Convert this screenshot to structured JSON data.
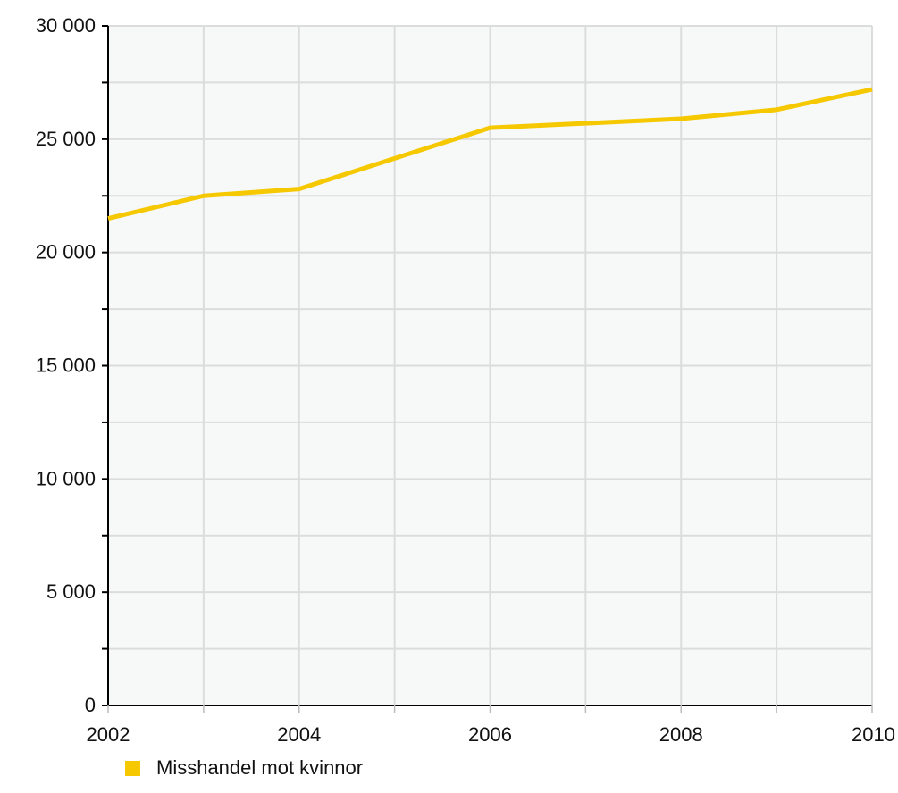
{
  "chart_data": {
    "type": "line",
    "x": [
      2002,
      2003,
      2004,
      2005,
      2006,
      2007,
      2008,
      2009,
      2010
    ],
    "series": [
      {
        "name": "Misshandel mot kvinnor",
        "values": [
          21500,
          22500,
          22800,
          24150,
          25500,
          25700,
          25900,
          26300,
          27200
        ],
        "color": "#f5c800"
      }
    ],
    "x_tick_labels": [
      "2002",
      "2004",
      "2006",
      "2008",
      "2010"
    ],
    "y_tick_labels": [
      "0",
      "5 000",
      "10 000",
      "15 000",
      "20 000",
      "25 000",
      "30 000"
    ],
    "y_ticks": [
      0,
      5000,
      10000,
      15000,
      20000,
      25000,
      30000
    ],
    "xlim": [
      2002,
      2010
    ],
    "ylim": [
      0,
      30000
    ],
    "grid": true,
    "legend_position": "bottom-left",
    "title": "",
    "xlabel": "",
    "ylabel": "",
    "colors": {
      "plot_background": "#f7f8f8",
      "grid": "#dcdcdc",
      "axis": "#000000",
      "line": "#f5c800"
    }
  }
}
